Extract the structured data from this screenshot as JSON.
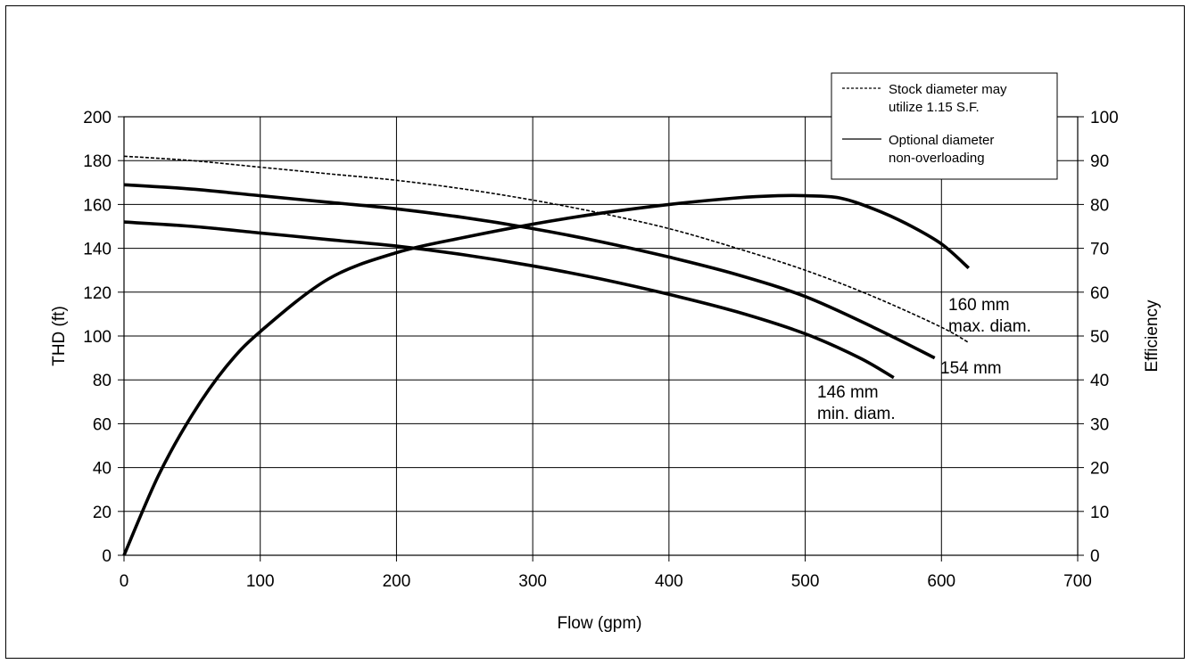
{
  "chart_data": {
    "type": "line",
    "xlabel": "Flow (gpm)",
    "ylabel": "THD (ft)",
    "y2label": "Efficiency",
    "xlim": [
      0,
      700
    ],
    "ylim": [
      0,
      200
    ],
    "y2lim": [
      0,
      100
    ],
    "x_ticks": [
      0,
      100,
      200,
      300,
      400,
      500,
      600,
      700
    ],
    "y_ticks": [
      0,
      20,
      40,
      60,
      80,
      100,
      120,
      140,
      160,
      180,
      200
    ],
    "y2_ticks": [
      0,
      10,
      20,
      30,
      40,
      50,
      60,
      70,
      80,
      90,
      100
    ],
    "grid": true,
    "legend": {
      "placement": "top-right",
      "entries": [
        {
          "style": "dashed",
          "lines": [
            "Stock diameter may",
            "utilize 1.15 S.F."
          ]
        },
        {
          "style": "solid",
          "lines": [
            "Optional diameter",
            "non-overloading"
          ]
        }
      ]
    },
    "series": [
      {
        "key": "d160",
        "style": "dashed",
        "axis": "left",
        "x": [
          0,
          50,
          100,
          150,
          200,
          250,
          300,
          350,
          400,
          450,
          500,
          550,
          600,
          620
        ],
        "y": [
          182,
          180,
          177,
          174,
          171,
          167,
          162,
          156,
          149,
          140,
          130,
          118,
          104,
          97
        ]
      },
      {
        "key": "d154",
        "style": "solid",
        "axis": "left",
        "x": [
          0,
          50,
          100,
          150,
          200,
          250,
          300,
          350,
          400,
          450,
          500,
          550,
          595
        ],
        "y": [
          169,
          167,
          164,
          161,
          158,
          154,
          149,
          143,
          136,
          128,
          118,
          104,
          90
        ]
      },
      {
        "key": "d146",
        "style": "solid",
        "axis": "left",
        "x": [
          0,
          50,
          100,
          150,
          200,
          250,
          300,
          350,
          400,
          450,
          500,
          540,
          565
        ],
        "y": [
          152,
          150,
          147,
          144,
          141,
          137,
          132,
          126,
          119,
          111,
          101,
          90,
          81
        ]
      },
      {
        "key": "efficiency",
        "style": "solid",
        "axis": "right",
        "x": [
          0,
          25,
          50,
          75,
          100,
          150,
          200,
          250,
          300,
          350,
          400,
          450,
          480,
          500,
          525,
          550,
          575,
          600,
          620
        ],
        "y": [
          0,
          18,
          32,
          43,
          51,
          63,
          69,
          72.5,
          75.5,
          78,
          80,
          81.5,
          82,
          82,
          81.5,
          79,
          75.5,
          71,
          65.5
        ]
      }
    ],
    "annotations": [
      {
        "key": "a160",
        "lines": [
          "160 mm",
          "max. diam."
        ]
      },
      {
        "key": "a154",
        "lines": [
          "154 mm"
        ]
      },
      {
        "key": "a146",
        "lines": [
          "146 mm",
          "min. diam."
        ]
      }
    ]
  }
}
